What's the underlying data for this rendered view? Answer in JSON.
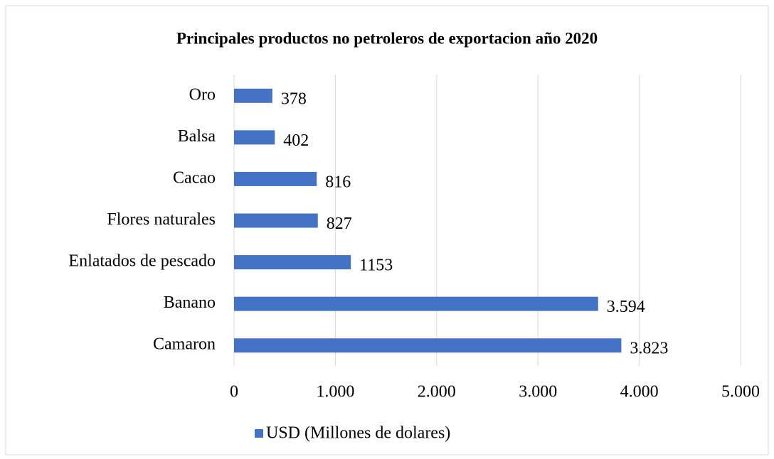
{
  "chart_data": {
    "type": "bar",
    "orientation": "horizontal",
    "title": "Principales productos no petroleros de exportacion año 2020",
    "categories": [
      "Oro",
      "Balsa",
      "Cacao",
      "Flores naturales",
      "Enlatados de pescado",
      "Banano",
      "Camaron"
    ],
    "series": [
      {
        "name": "USD (Millones de dolares)",
        "color": "#4472c4",
        "values": [
          378,
          402,
          816,
          827,
          1153,
          3594,
          3823
        ],
        "value_labels": [
          "378",
          "402",
          "816",
          "827",
          "1153",
          "3.594",
          "3.823"
        ]
      }
    ],
    "xlim": [
      0,
      5000
    ],
    "xticks": [
      0,
      {
        "value": 1000,
        "label": "1.000"
      },
      {
        "value": 2000,
        "label": "2.000"
      },
      {
        "value": 3000,
        "label": "3.000"
      },
      {
        "value": 4000,
        "label": "4.000"
      },
      {
        "value": 5000,
        "label": "5.000"
      }
    ],
    "grid": true,
    "legend": "bottom"
  }
}
